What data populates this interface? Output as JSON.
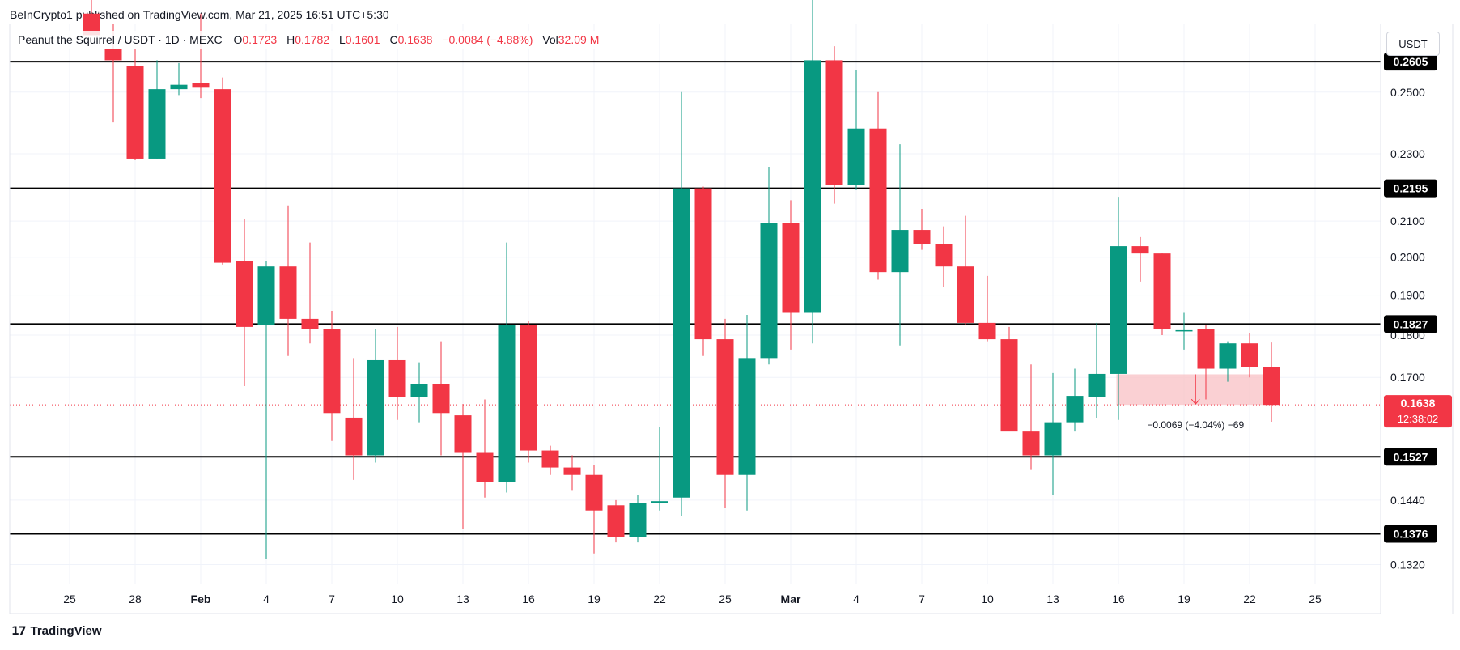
{
  "header": {
    "published": "BeInCrypto1 published on TradingView.com, Mar 21, 2025 16:51 UTC+5:30"
  },
  "legend": {
    "symbol": "Peanut the Squirrel / USDT · 1D · MEXC",
    "o_label": "O",
    "o_value": "0.1723",
    "h_label": "H",
    "h_value": "0.1782",
    "l_label": "L",
    "l_value": "0.1601",
    "c_label": "C",
    "c_value": "0.1638",
    "change": "−0.0084 (−4.88%)",
    "vol_label": "Vol",
    "vol_value": "32.09 M"
  },
  "currency_button": "USDT",
  "footer": {
    "brand": "TradingView",
    "logo_icon": "tradingview-logo-icon"
  },
  "colors": {
    "up": "#089981",
    "down": "#f23645",
    "level_line": "#000000",
    "measure_fill": "#f9c4c8"
  },
  "chart_data": {
    "type": "candlestick",
    "y_scale": "log",
    "ylim": [
      0.1285,
      0.274
    ],
    "x_tick_labels": [
      "25",
      "28",
      "Feb",
      "4",
      "7",
      "10",
      "13",
      "16",
      "19",
      "22",
      "25",
      "Mar",
      "4",
      "7",
      "10",
      "13",
      "16",
      "19",
      "22",
      "25"
    ],
    "y_tick_labels": [
      "0.2500",
      "0.2300",
      "0.2100",
      "0.2000",
      "0.1900",
      "0.1800",
      "0.1700",
      "0.1440",
      "0.1320"
    ],
    "horizontal_levels": [
      "0.2605",
      "0.2195",
      "0.1827",
      "0.1527",
      "0.1376"
    ],
    "last_price": {
      "label": "0.1638",
      "countdown": "12:38:02"
    },
    "measurement": {
      "label": "−0.0069 (−4.04%) −69",
      "from": 0.1707,
      "to": 0.1638
    },
    "candles": [
      {
        "o": 0.278,
        "h": 0.285,
        "l": 0.27,
        "c": 0.27
      },
      {
        "o": 0.265,
        "h": 0.274,
        "l": 0.24,
        "c": 0.261
      },
      {
        "o": 0.259,
        "h": 0.265,
        "l": 0.228,
        "c": 0.2285
      },
      {
        "o": 0.2285,
        "h": 0.261,
        "l": 0.2285,
        "c": 0.251
      },
      {
        "o": 0.251,
        "h": 0.26,
        "l": 0.249,
        "c": 0.2525
      },
      {
        "o": 0.253,
        "h": 0.278,
        "l": 0.248,
        "c": 0.2515
      },
      {
        "o": 0.251,
        "h": 0.255,
        "l": 0.198,
        "c": 0.1985
      },
      {
        "o": 0.199,
        "h": 0.2105,
        "l": 0.168,
        "c": 0.182
      },
      {
        "o": 0.1825,
        "h": 0.199,
        "l": 0.133,
        "c": 0.1975
      },
      {
        "o": 0.1975,
        "h": 0.2145,
        "l": 0.175,
        "c": 0.184
      },
      {
        "o": 0.184,
        "h": 0.204,
        "l": 0.178,
        "c": 0.1815
      },
      {
        "o": 0.1815,
        "h": 0.186,
        "l": 0.156,
        "c": 0.162
      },
      {
        "o": 0.161,
        "h": 0.1745,
        "l": 0.148,
        "c": 0.153
      },
      {
        "o": 0.153,
        "h": 0.1815,
        "l": 0.1515,
        "c": 0.174
      },
      {
        "o": 0.174,
        "h": 0.182,
        "l": 0.1605,
        "c": 0.1655
      },
      {
        "o": 0.1655,
        "h": 0.1735,
        "l": 0.16,
        "c": 0.1685
      },
      {
        "o": 0.1685,
        "h": 0.1785,
        "l": 0.153,
        "c": 0.162
      },
      {
        "o": 0.1615,
        "h": 0.164,
        "l": 0.1385,
        "c": 0.1535
      },
      {
        "o": 0.1535,
        "h": 0.165,
        "l": 0.1445,
        "c": 0.1475
      },
      {
        "o": 0.1475,
        "h": 0.204,
        "l": 0.1455,
        "c": 0.1825
      },
      {
        "o": 0.1825,
        "h": 0.1835,
        "l": 0.1515,
        "c": 0.154
      },
      {
        "o": 0.154,
        "h": 0.155,
        "l": 0.149,
        "c": 0.1505
      },
      {
        "o": 0.1505,
        "h": 0.153,
        "l": 0.146,
        "c": 0.149
      },
      {
        "o": 0.149,
        "h": 0.151,
        "l": 0.134,
        "c": 0.142
      },
      {
        "o": 0.143,
        "h": 0.144,
        "l": 0.136,
        "c": 0.137
      },
      {
        "o": 0.137,
        "h": 0.145,
        "l": 0.136,
        "c": 0.1435
      },
      {
        "o": 0.1435,
        "h": 0.159,
        "l": 0.142,
        "c": 0.1438
      },
      {
        "o": 0.1445,
        "h": 0.25,
        "l": 0.141,
        "c": 0.2195
      },
      {
        "o": 0.2195,
        "h": 0.22,
        "l": 0.175,
        "c": 0.179
      },
      {
        "o": 0.179,
        "h": 0.184,
        "l": 0.1425,
        "c": 0.149
      },
      {
        "o": 0.149,
        "h": 0.185,
        "l": 0.142,
        "c": 0.1745
      },
      {
        "o": 0.1745,
        "h": 0.226,
        "l": 0.173,
        "c": 0.2095
      },
      {
        "o": 0.2095,
        "h": 0.216,
        "l": 0.1765,
        "c": 0.1855
      },
      {
        "o": 0.1855,
        "h": 0.285,
        "l": 0.178,
        "c": 0.261
      },
      {
        "o": 0.261,
        "h": 0.266,
        "l": 0.215,
        "c": 0.2205
      },
      {
        "o": 0.2205,
        "h": 0.2575,
        "l": 0.219,
        "c": 0.238
      },
      {
        "o": 0.238,
        "h": 0.25,
        "l": 0.194,
        "c": 0.196
      },
      {
        "o": 0.196,
        "h": 0.233,
        "l": 0.1775,
        "c": 0.2075
      },
      {
        "o": 0.2075,
        "h": 0.2135,
        "l": 0.202,
        "c": 0.2035
      },
      {
        "o": 0.2035,
        "h": 0.2085,
        "l": 0.192,
        "c": 0.1975
      },
      {
        "o": 0.1975,
        "h": 0.2115,
        "l": 0.1825,
        "c": 0.183
      },
      {
        "o": 0.183,
        "h": 0.195,
        "l": 0.1785,
        "c": 0.179
      },
      {
        "o": 0.179,
        "h": 0.182,
        "l": 0.1595,
        "c": 0.158
      },
      {
        "o": 0.158,
        "h": 0.173,
        "l": 0.15,
        "c": 0.153
      },
      {
        "o": 0.153,
        "h": 0.171,
        "l": 0.145,
        "c": 0.16
      },
      {
        "o": 0.16,
        "h": 0.172,
        "l": 0.158,
        "c": 0.1658
      },
      {
        "o": 0.1655,
        "h": 0.183,
        "l": 0.161,
        "c": 0.1708
      },
      {
        "o": 0.1708,
        "h": 0.217,
        "l": 0.1605,
        "c": 0.203
      },
      {
        "o": 0.203,
        "h": 0.2055,
        "l": 0.1935,
        "c": 0.201
      },
      {
        "o": 0.201,
        "h": 0.201,
        "l": 0.18,
        "c": 0.1815
      },
      {
        "o": 0.181,
        "h": 0.1855,
        "l": 0.1765,
        "c": 0.1812
      },
      {
        "o": 0.1815,
        "h": 0.1825,
        "l": 0.165,
        "c": 0.172
      },
      {
        "o": 0.172,
        "h": 0.1785,
        "l": 0.169,
        "c": 0.178
      },
      {
        "o": 0.178,
        "h": 0.1805,
        "l": 0.17,
        "c": 0.1723
      },
      {
        "o": 0.1723,
        "h": 0.1782,
        "l": 0.1601,
        "c": 0.1638
      }
    ]
  }
}
